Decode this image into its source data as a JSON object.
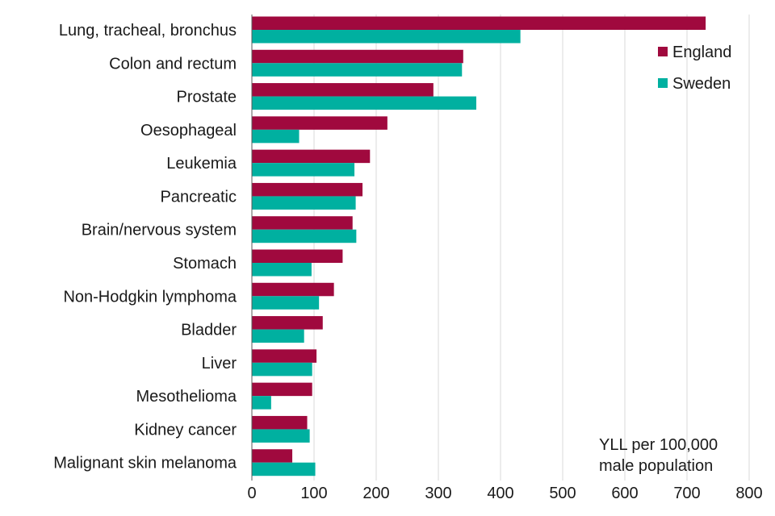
{
  "chart_data": {
    "type": "bar",
    "orientation": "horizontal",
    "categories": [
      "Lung, tracheal, bronchus",
      "Colon and rectum",
      "Prostate",
      "Oesophageal",
      "Leukemia",
      "Pancreatic",
      "Brain/nervous system",
      "Stomach",
      "Non-Hodgkin lymphoma",
      "Bladder",
      "Liver",
      "Mesothelioma",
      "Kidney cancer",
      "Malignant skin melanoma"
    ],
    "series": [
      {
        "name": "England",
        "color": "#A0093E",
        "values": [
          730,
          340,
          292,
          218,
          190,
          178,
          162,
          146,
          132,
          114,
          104,
          97,
          89,
          65
        ]
      },
      {
        "name": "Sweden",
        "color": "#00B0A0",
        "values": [
          432,
          338,
          361,
          76,
          165,
          167,
          168,
          96,
          108,
          84,
          97,
          31,
          93,
          102
        ]
      }
    ],
    "xlim": [
      0,
      800
    ],
    "xticks": [
      "0",
      "100",
      "200",
      "300",
      "400",
      "500",
      "600",
      "700",
      "800"
    ],
    "grid": "vertical",
    "legend_position": "top-right",
    "annotation_lines": [
      "YLL per 100,000",
      "male population"
    ]
  }
}
